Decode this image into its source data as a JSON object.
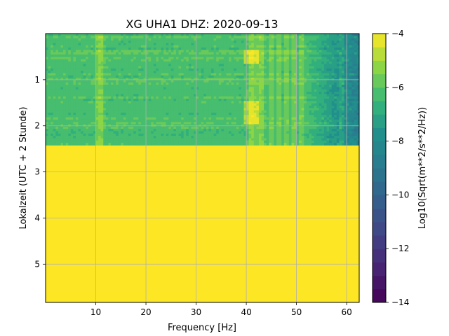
{
  "chart_data": {
    "type": "heatmap",
    "title": "XG UHA1  DHZ: 2020-09-13",
    "xlabel": "Frequency [Hz]",
    "ylabel": "Lokalzeit (UTC + 2 Stunde)",
    "xlim": [
      0,
      62.5
    ],
    "ylim": [
      5.83,
      0
    ],
    "x_ticks": [
      10,
      20,
      30,
      40,
      50,
      60
    ],
    "y_ticks": [
      1,
      2,
      3,
      4,
      5
    ],
    "grid": true,
    "colormap": "viridis",
    "colorbar": {
      "label": "Log10(Sqrt(m**2/s**2/Hz))",
      "range": [
        -14,
        -4
      ],
      "ticks": [
        -4,
        -6,
        -8,
        -10,
        -12,
        -14
      ],
      "levels": 20
    },
    "data_coverage_hours": [
      0,
      2.42
    ],
    "no_data_value": -4,
    "background_level": -6.2,
    "spectral_lines_hz": [
      10.5,
      11.2,
      40.8,
      41.5,
      42.5,
      43.2,
      45,
      46.5,
      48,
      49.5,
      51,
      59
    ]
  },
  "colors": {
    "viridis_low": "#440154",
    "viridis_high": "#fde725",
    "grid": "#b0b0b0"
  }
}
